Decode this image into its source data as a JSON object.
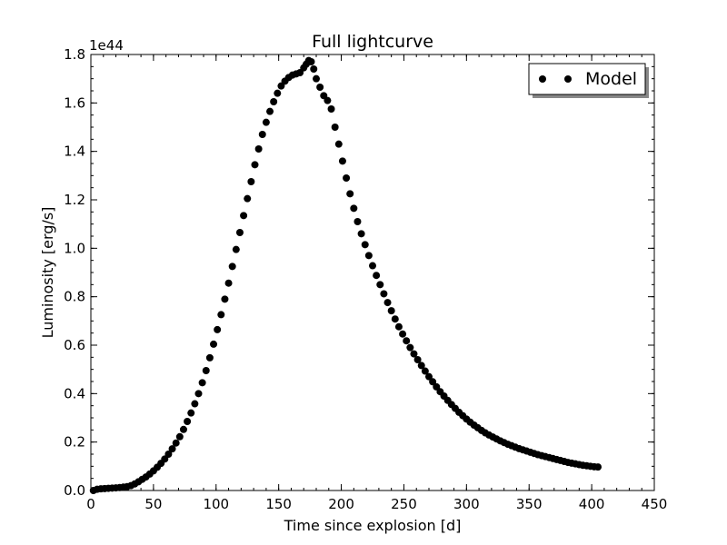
{
  "chart_data": {
    "type": "scatter",
    "title": "Full lightcurve",
    "xlabel": "Time since explosion [d]",
    "ylabel": "Luminosity [erg/s]",
    "y_offset_label": "1e44",
    "xlim": [
      0,
      450
    ],
    "ylim": [
      0,
      1.8
    ],
    "y_scale_factor": 1e+44,
    "xticks": [
      0,
      50,
      100,
      150,
      200,
      250,
      300,
      350,
      400,
      450
    ],
    "xtick_labels": [
      "0",
      "50",
      "100",
      "150",
      "200",
      "250",
      "300",
      "350",
      "400",
      "450"
    ],
    "yticks": [
      0,
      0.2,
      0.4,
      0.6,
      0.8,
      1.0,
      1.2,
      1.4,
      1.6,
      1.8
    ],
    "ytick_labels": [
      "0.0",
      "0.2",
      "0.4",
      "0.6",
      "0.8",
      "1.0",
      "1.2",
      "1.4",
      "1.6",
      "1.8"
    ],
    "grid": false,
    "legend_position": "top-right",
    "series": [
      {
        "name": "Model",
        "color": "#000000",
        "marker": "circle",
        "x": [
          2,
          5,
          8,
          11,
          14,
          17,
          20,
          23,
          26,
          29,
          32,
          35,
          38,
          41,
          44,
          47,
          50,
          53,
          56,
          59,
          62,
          65,
          68,
          71,
          74,
          77,
          80,
          83,
          86,
          89,
          92,
          95,
          98,
          101,
          104,
          107,
          110,
          113,
          116,
          119,
          122,
          125,
          128,
          131,
          134,
          137,
          140,
          143,
          146,
          149,
          152,
          155,
          158,
          161,
          164,
          167,
          170,
          172,
          174,
          176,
          178,
          180,
          183,
          186,
          189,
          192,
          195,
          198,
          201,
          204,
          207,
          210,
          213,
          216,
          219,
          222,
          225,
          228,
          231,
          234,
          237,
          240,
          243,
          246,
          249,
          252,
          255,
          258,
          261,
          264,
          267,
          270,
          273,
          276,
          279,
          282,
          285,
          288,
          291,
          294,
          297,
          300,
          303,
          306,
          309,
          312,
          315,
          318,
          321,
          324,
          327,
          330,
          333,
          336,
          339,
          342,
          345,
          348,
          351,
          354,
          357,
          360,
          363,
          366,
          369,
          372,
          375,
          378,
          381,
          384,
          387,
          390,
          393,
          396,
          399,
          402,
          405
        ],
        "y": [
          0.0,
          0.005,
          0.007,
          0.008,
          0.009,
          0.01,
          0.011,
          0.012,
          0.014,
          0.016,
          0.02,
          0.027,
          0.036,
          0.046,
          0.056,
          0.068,
          0.081,
          0.096,
          0.112,
          0.13,
          0.15,
          0.172,
          0.196,
          0.222,
          0.252,
          0.285,
          0.32,
          0.358,
          0.4,
          0.445,
          0.495,
          0.548,
          0.604,
          0.664,
          0.726,
          0.79,
          0.856,
          0.925,
          0.995,
          1.065,
          1.135,
          1.205,
          1.275,
          1.345,
          1.41,
          1.47,
          1.52,
          1.565,
          1.605,
          1.64,
          1.67,
          1.69,
          1.705,
          1.715,
          1.72,
          1.725,
          1.745,
          1.76,
          1.775,
          1.77,
          1.74,
          1.7,
          1.665,
          1.63,
          1.61,
          1.575,
          1.5,
          1.43,
          1.36,
          1.29,
          1.225,
          1.165,
          1.11,
          1.06,
          1.015,
          0.97,
          0.928,
          0.888,
          0.85,
          0.812,
          0.776,
          0.742,
          0.708,
          0.676,
          0.646,
          0.618,
          0.59,
          0.564,
          0.54,
          0.516,
          0.493,
          0.47,
          0.449,
          0.428,
          0.408,
          0.39,
          0.372,
          0.355,
          0.339,
          0.323,
          0.309,
          0.295,
          0.282,
          0.27,
          0.259,
          0.248,
          0.238,
          0.229,
          0.221,
          0.213,
          0.205,
          0.198,
          0.191,
          0.185,
          0.179,
          0.173,
          0.168,
          0.163,
          0.158,
          0.153,
          0.148,
          0.144,
          0.14,
          0.136,
          0.132,
          0.128,
          0.124,
          0.12,
          0.116,
          0.113,
          0.11,
          0.107,
          0.104,
          0.102,
          0.1,
          0.098,
          0.097
        ]
      }
    ]
  }
}
